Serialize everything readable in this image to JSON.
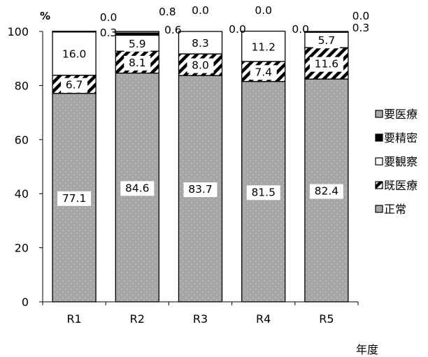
{
  "chart_data": {
    "type": "bar",
    "stacked": true,
    "y_unit": "%",
    "xlabel": "年度",
    "ylabel": "",
    "ylim": [
      0,
      100
    ],
    "yticks": [
      0,
      20,
      40,
      60,
      80,
      100
    ],
    "grid": false,
    "legend_position": "right",
    "categories": [
      "R1",
      "R2",
      "R3",
      "R4",
      "R5"
    ],
    "series": [
      {
        "name": "正常",
        "values": [
          77.1,
          84.6,
          83.7,
          81.5,
          82.4
        ],
        "labels": [
          "77.1",
          "84.6",
          "83.7",
          "81.5",
          "82.4"
        ]
      },
      {
        "name": "既医療",
        "values": [
          6.7,
          8.1,
          8.0,
          7.4,
          11.6
        ],
        "labels": [
          "6.7",
          "8.1",
          "8.0",
          "7.4",
          "11.6"
        ]
      },
      {
        "name": "要観察",
        "values": [
          16.0,
          5.9,
          8.3,
          11.2,
          5.7
        ],
        "labels": [
          "16.0",
          "5.9",
          "8.3",
          "11.2",
          "5.7"
        ]
      },
      {
        "name": "要精密",
        "values": [
          0.0,
          0.8,
          0.0,
          0.0,
          0.0
        ],
        "labels": [
          "0.0",
          "0.8",
          "0.0",
          "0.0",
          "0.0"
        ]
      },
      {
        "name": "要医療",
        "values": [
          0.3,
          0.6,
          0.0,
          0.0,
          0.3
        ],
        "labels": [
          "0.3",
          "0.6",
          "0.0",
          "0.0",
          "0.3"
        ]
      }
    ],
    "legend_order": [
      "要医療",
      "要精密",
      "要観察",
      "既医療",
      "正常"
    ],
    "colors": {
      "正常": "#a6a6a6",
      "既医療": "#ffffff",
      "要観察": "#ffffff",
      "要精密": "#000000",
      "要医療": "#a6a6a6"
    }
  }
}
